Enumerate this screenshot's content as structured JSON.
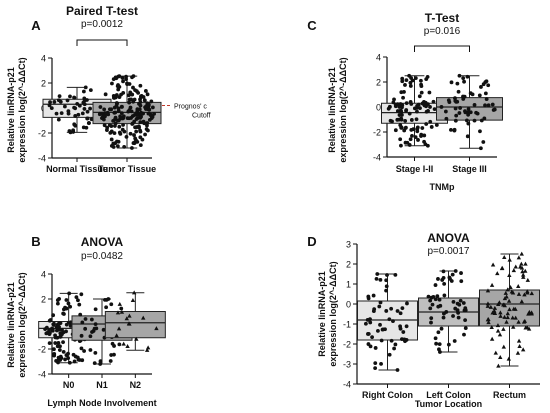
{
  "chart_data": [
    {
      "type": "box",
      "panel_label": "A",
      "title": "Paired T-test",
      "pvalue": "p=0.0012",
      "xlabel": "",
      "ylabel_line1": "Relative linRNA-p21",
      "ylabel_line2": "expression log(2^-ΔΔCt)",
      "ylim": [
        -4,
        4
      ],
      "y_ticks": [
        -4,
        -2,
        0,
        2,
        4
      ],
      "categories": [
        "Normal Tissue",
        "Tumor Tissue"
      ],
      "box_colors": [
        "#e6e6e6",
        "#a6a6a6"
      ],
      "boxes": [
        {
          "min": -1.95,
          "q1": -0.75,
          "median": 0.3,
          "q3": 0.7,
          "max": 1.65
        },
        {
          "min": -3.2,
          "q1": -1.25,
          "median": -0.35,
          "q3": 0.45,
          "max": 2.55
        }
      ],
      "n_points": [
        50,
        190
      ],
      "reference_line": {
        "y": 0.2,
        "color": "#c0392b",
        "label_line1": "Prognos' c",
        "label_line2": "Cutoff"
      },
      "bracket": {
        "from": 0,
        "to": 1
      }
    },
    {
      "type": "box",
      "panel_label": "B",
      "title": "ANOVA",
      "pvalue": "p=0.0482",
      "xlabel": "Lymph Node Involvement",
      "ylabel_line1": "Relative linRNA-p21",
      "ylabel_line2": "expression log(2^-ΔΔCt)",
      "ylim": [
        -4,
        4
      ],
      "y_ticks": [
        -4,
        -2,
        0,
        2,
        4
      ],
      "categories": [
        "N0",
        "N1",
        "N2"
      ],
      "box_colors": [
        "#e6e6e6",
        "#a6a6a6",
        "#a6a6a6"
      ],
      "boxes": [
        {
          "min": -3.1,
          "q1": -1.1,
          "median": -0.35,
          "q3": 0.2,
          "max": 2.45
        },
        {
          "min": -3.2,
          "q1": -1.3,
          "median": 0.0,
          "q3": 0.65,
          "max": 2.0
        },
        {
          "min": -2.1,
          "q1": -1.1,
          "median": 0.1,
          "q3": 1.0,
          "max": 2.5
        }
      ],
      "n_points": [
        120,
        40,
        18
      ]
    },
    {
      "type": "box",
      "panel_label": "C",
      "title": "T-Test",
      "pvalue": "p=0.016",
      "xlabel": "TNMp",
      "ylabel_line1": "Relative linRNA-p21",
      "ylabel_line2": "expression log(2^-ΔΔCt)",
      "ylim": [
        -4,
        4
      ],
      "y_ticks": [
        -4,
        -2,
        0,
        2,
        4
      ],
      "categories": [
        "Stage I-II",
        "Stage III"
      ],
      "box_colors": [
        "#e6e6e6",
        "#a6a6a6"
      ],
      "boxes": [
        {
          "min": -3.1,
          "q1": -1.3,
          "median": -0.45,
          "q3": 0.3,
          "max": 2.5
        },
        {
          "min": -3.3,
          "q1": -1.05,
          "median": 0.0,
          "q3": 0.75,
          "max": 2.5
        }
      ],
      "n_points": [
        110,
        60
      ],
      "bracket": {
        "from": 0,
        "to": 1
      }
    },
    {
      "type": "box",
      "panel_label": "D",
      "title": "ANOVA",
      "pvalue": "p=0.0017",
      "xlabel": "Tumor Location",
      "ylabel_line1": "Relative linRNA-p21",
      "ylabel_line2": "expression log(2^-ΔΔCt)",
      "ylim": [
        -4,
        3
      ],
      "y_ticks": [
        -4,
        -3,
        -2,
        -1,
        0,
        1,
        2,
        3
      ],
      "categories": [
        "Right  Colon",
        "Left Colon",
        "Rectum"
      ],
      "box_colors": [
        "#e6e6e6",
        "#bfbfbf",
        "#a6a6a6"
      ],
      "boxes": [
        {
          "min": -3.3,
          "q1": -1.8,
          "median": -0.8,
          "q3": 0.15,
          "max": 1.5
        },
        {
          "min": -2.4,
          "q1": -1.1,
          "median": -0.4,
          "q3": 0.3,
          "max": 1.65
        },
        {
          "min": -3.1,
          "q1": -1.1,
          "median": 0.0,
          "q3": 0.7,
          "max": 2.5
        }
      ],
      "n_points": [
        55,
        55,
        90
      ],
      "reference_line": {
        "y": 0,
        "color": "#222222",
        "label_line1": "",
        "label_line2": ""
      }
    }
  ]
}
